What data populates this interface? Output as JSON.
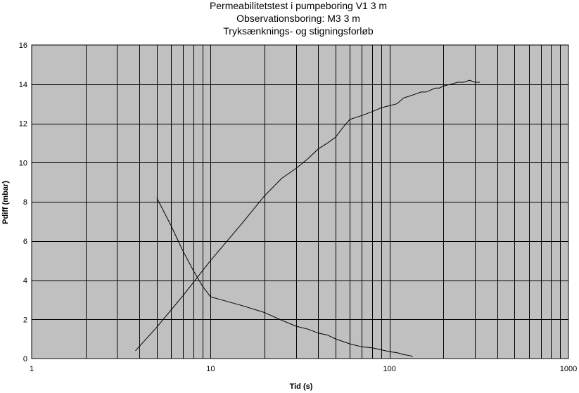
{
  "chart_data": {
    "type": "line",
    "title_lines": [
      "Permeabilitetstest i pumpeboring V1 3 m",
      "Observationsboring: M3 3 m",
      "Tryksænknings- og stigningsforløb"
    ],
    "xlabel": "Tid (s)",
    "ylabel": "Pdiff (mbar)",
    "x_scale": "log",
    "xlim": [
      1,
      1000
    ],
    "ylim": [
      0,
      16
    ],
    "x_ticks": [
      "1",
      "10",
      "100",
      "1000"
    ],
    "y_ticks": [
      "0",
      "2",
      "4",
      "6",
      "8",
      "10",
      "12",
      "14",
      "16"
    ],
    "grid": true,
    "plot_background": "#c0c0c0",
    "line_color": "#000000",
    "series": [
      {
        "x": [
          3.8,
          5,
          7,
          10,
          15,
          20,
          25,
          30,
          35,
          40,
          45,
          50,
          55,
          60,
          70,
          80,
          90,
          100,
          110,
          120,
          130,
          140,
          150,
          160,
          170,
          180,
          190,
          200,
          220,
          240,
          260,
          280,
          300,
          320
        ],
        "y": [
          0.4,
          1.6,
          3.2,
          5.0,
          6.9,
          8.3,
          9.2,
          9.7,
          10.2,
          10.7,
          11.0,
          11.3,
          11.8,
          12.2,
          12.4,
          12.6,
          12.8,
          12.9,
          13.0,
          13.3,
          13.4,
          13.5,
          13.6,
          13.6,
          13.7,
          13.8,
          13.8,
          13.9,
          14.0,
          14.1,
          14.1,
          14.2,
          14.1,
          14.1
        ]
      },
      {
        "x": [
          5,
          6,
          7,
          8,
          9,
          10,
          12,
          15,
          20,
          25,
          30,
          35,
          40,
          45,
          50,
          60,
          70,
          80,
          90,
          100,
          110,
          120,
          130,
          135
        ],
        "y": [
          8.2,
          6.8,
          5.5,
          4.5,
          3.7,
          3.15,
          2.95,
          2.7,
          2.35,
          1.95,
          1.65,
          1.5,
          1.3,
          1.2,
          1.0,
          0.75,
          0.6,
          0.55,
          0.45,
          0.35,
          0.3,
          0.2,
          0.15,
          0.1
        ]
      }
    ]
  }
}
